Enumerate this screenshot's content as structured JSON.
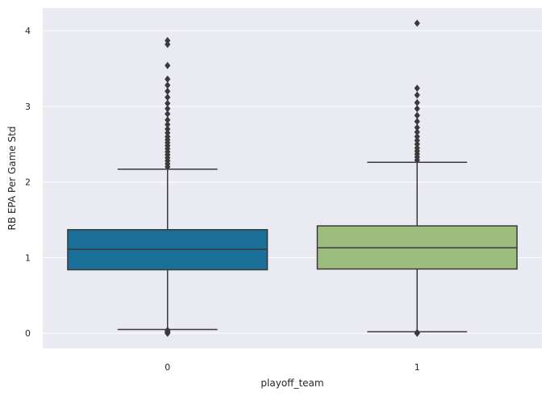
{
  "chart_data": {
    "type": "box",
    "xlabel": "playoff_team",
    "ylabel": "RB EPA Per Game Std",
    "ylim": [
      -0.2,
      4.3
    ],
    "yticks": [
      0,
      1,
      2,
      3,
      4
    ],
    "grid": true,
    "categories": [
      "0",
      "1"
    ],
    "boxes": [
      {
        "category": "0",
        "color": "#1a6f98",
        "whisker_low": 0.05,
        "q1": 0.84,
        "median": 1.11,
        "q3": 1.37,
        "whisker_high": 2.17,
        "outliers_high": [
          2.2,
          2.24,
          2.28,
          2.32,
          2.36,
          2.4,
          2.44,
          2.48,
          2.52,
          2.56,
          2.6,
          2.65,
          2.7,
          2.76,
          2.82,
          2.9,
          2.97,
          3.04,
          3.12,
          3.2,
          3.28,
          3.36,
          3.54,
          3.82,
          3.87
        ],
        "outliers_low": [
          0.0,
          0.01,
          0.02,
          0.03,
          0.04
        ]
      },
      {
        "category": "1",
        "color": "#9dbd7e",
        "whisker_low": 0.02,
        "q1": 0.85,
        "median": 1.13,
        "q3": 1.42,
        "whisker_high": 2.26,
        "outliers_high": [
          2.29,
          2.33,
          2.37,
          2.41,
          2.45,
          2.5,
          2.55,
          2.6,
          2.66,
          2.72,
          2.8,
          2.88,
          2.97,
          3.05,
          3.15,
          3.24,
          4.1
        ],
        "outliers_low": [
          0.0,
          0.01
        ]
      }
    ]
  }
}
